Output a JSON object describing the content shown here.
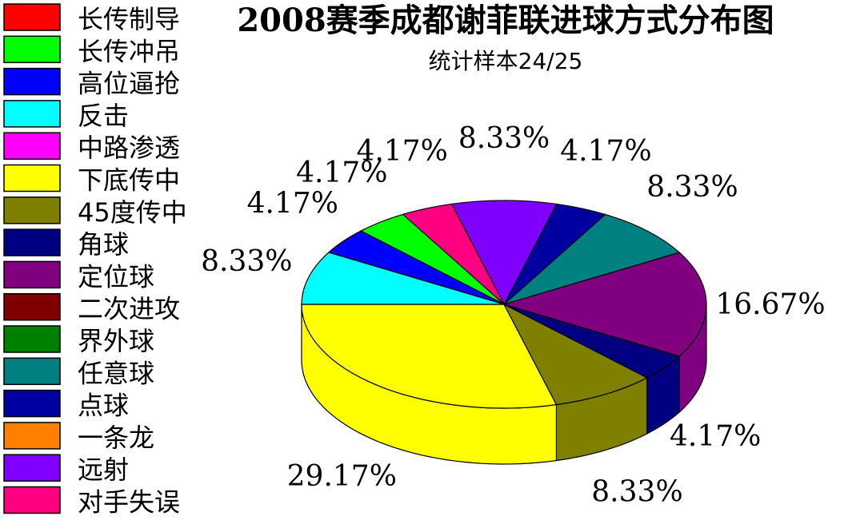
{
  "chart_data": {
    "type": "pie",
    "title": "2008赛季成都谢菲联进球方式分布图",
    "subtitle": "统计样本24/25",
    "legend_position": "left",
    "style": "3d",
    "legend": [
      {
        "name": "长传制导",
        "color": "#ff0000"
      },
      {
        "name": "长传冲吊",
        "color": "#00ff00"
      },
      {
        "name": "高位逼抢",
        "color": "#0000ff"
      },
      {
        "name": "反击",
        "color": "#00ffff"
      },
      {
        "name": "中路渗透",
        "color": "#ff00ff"
      },
      {
        "name": "下底传中",
        "color": "#ffff00"
      },
      {
        "name": "45度传中",
        "color": "#808000"
      },
      {
        "name": "角球",
        "color": "#000080"
      },
      {
        "name": "定位球",
        "color": "#800080"
      },
      {
        "name": "二次进攻",
        "color": "#800000"
      },
      {
        "name": "界外球",
        "color": "#008000"
      },
      {
        "name": "任意球",
        "color": "#008080"
      },
      {
        "name": "点球",
        "color": "#0000a0"
      },
      {
        "name": "一条龙",
        "color": "#ff8000"
      },
      {
        "name": "远射",
        "color": "#8000ff"
      },
      {
        "name": "对手失误",
        "color": "#ff0080"
      }
    ],
    "slices": [
      {
        "name": "下底传中",
        "value": 29.17,
        "label": "29.17%",
        "color": "#ffff00"
      },
      {
        "name": "45度传中",
        "value": 8.33,
        "label": "8.33%",
        "color": "#808000"
      },
      {
        "name": "角球",
        "value": 4.17,
        "label": "4.17%",
        "color": "#000080"
      },
      {
        "name": "定位球",
        "value": 16.67,
        "label": "16.67%",
        "color": "#800080"
      },
      {
        "name": "任意球",
        "value": 8.33,
        "label": "8.33%",
        "color": "#008080"
      },
      {
        "name": "点球",
        "value": 4.17,
        "label": "4.17%",
        "color": "#0000a0"
      },
      {
        "name": "远射",
        "value": 8.33,
        "label": "8.33%",
        "color": "#8000ff"
      },
      {
        "name": "对手失误",
        "value": 4.17,
        "label": "4.17%",
        "color": "#ff0080"
      },
      {
        "name": "长传冲吊",
        "value": 4.17,
        "label": "4.17%",
        "color": "#00ff00"
      },
      {
        "name": "高位逼抢",
        "value": 4.17,
        "label": "4.17%",
        "color": "#0000ff"
      },
      {
        "name": "反击",
        "value": 8.33,
        "label": "8.33%",
        "color": "#00ffff"
      }
    ]
  }
}
